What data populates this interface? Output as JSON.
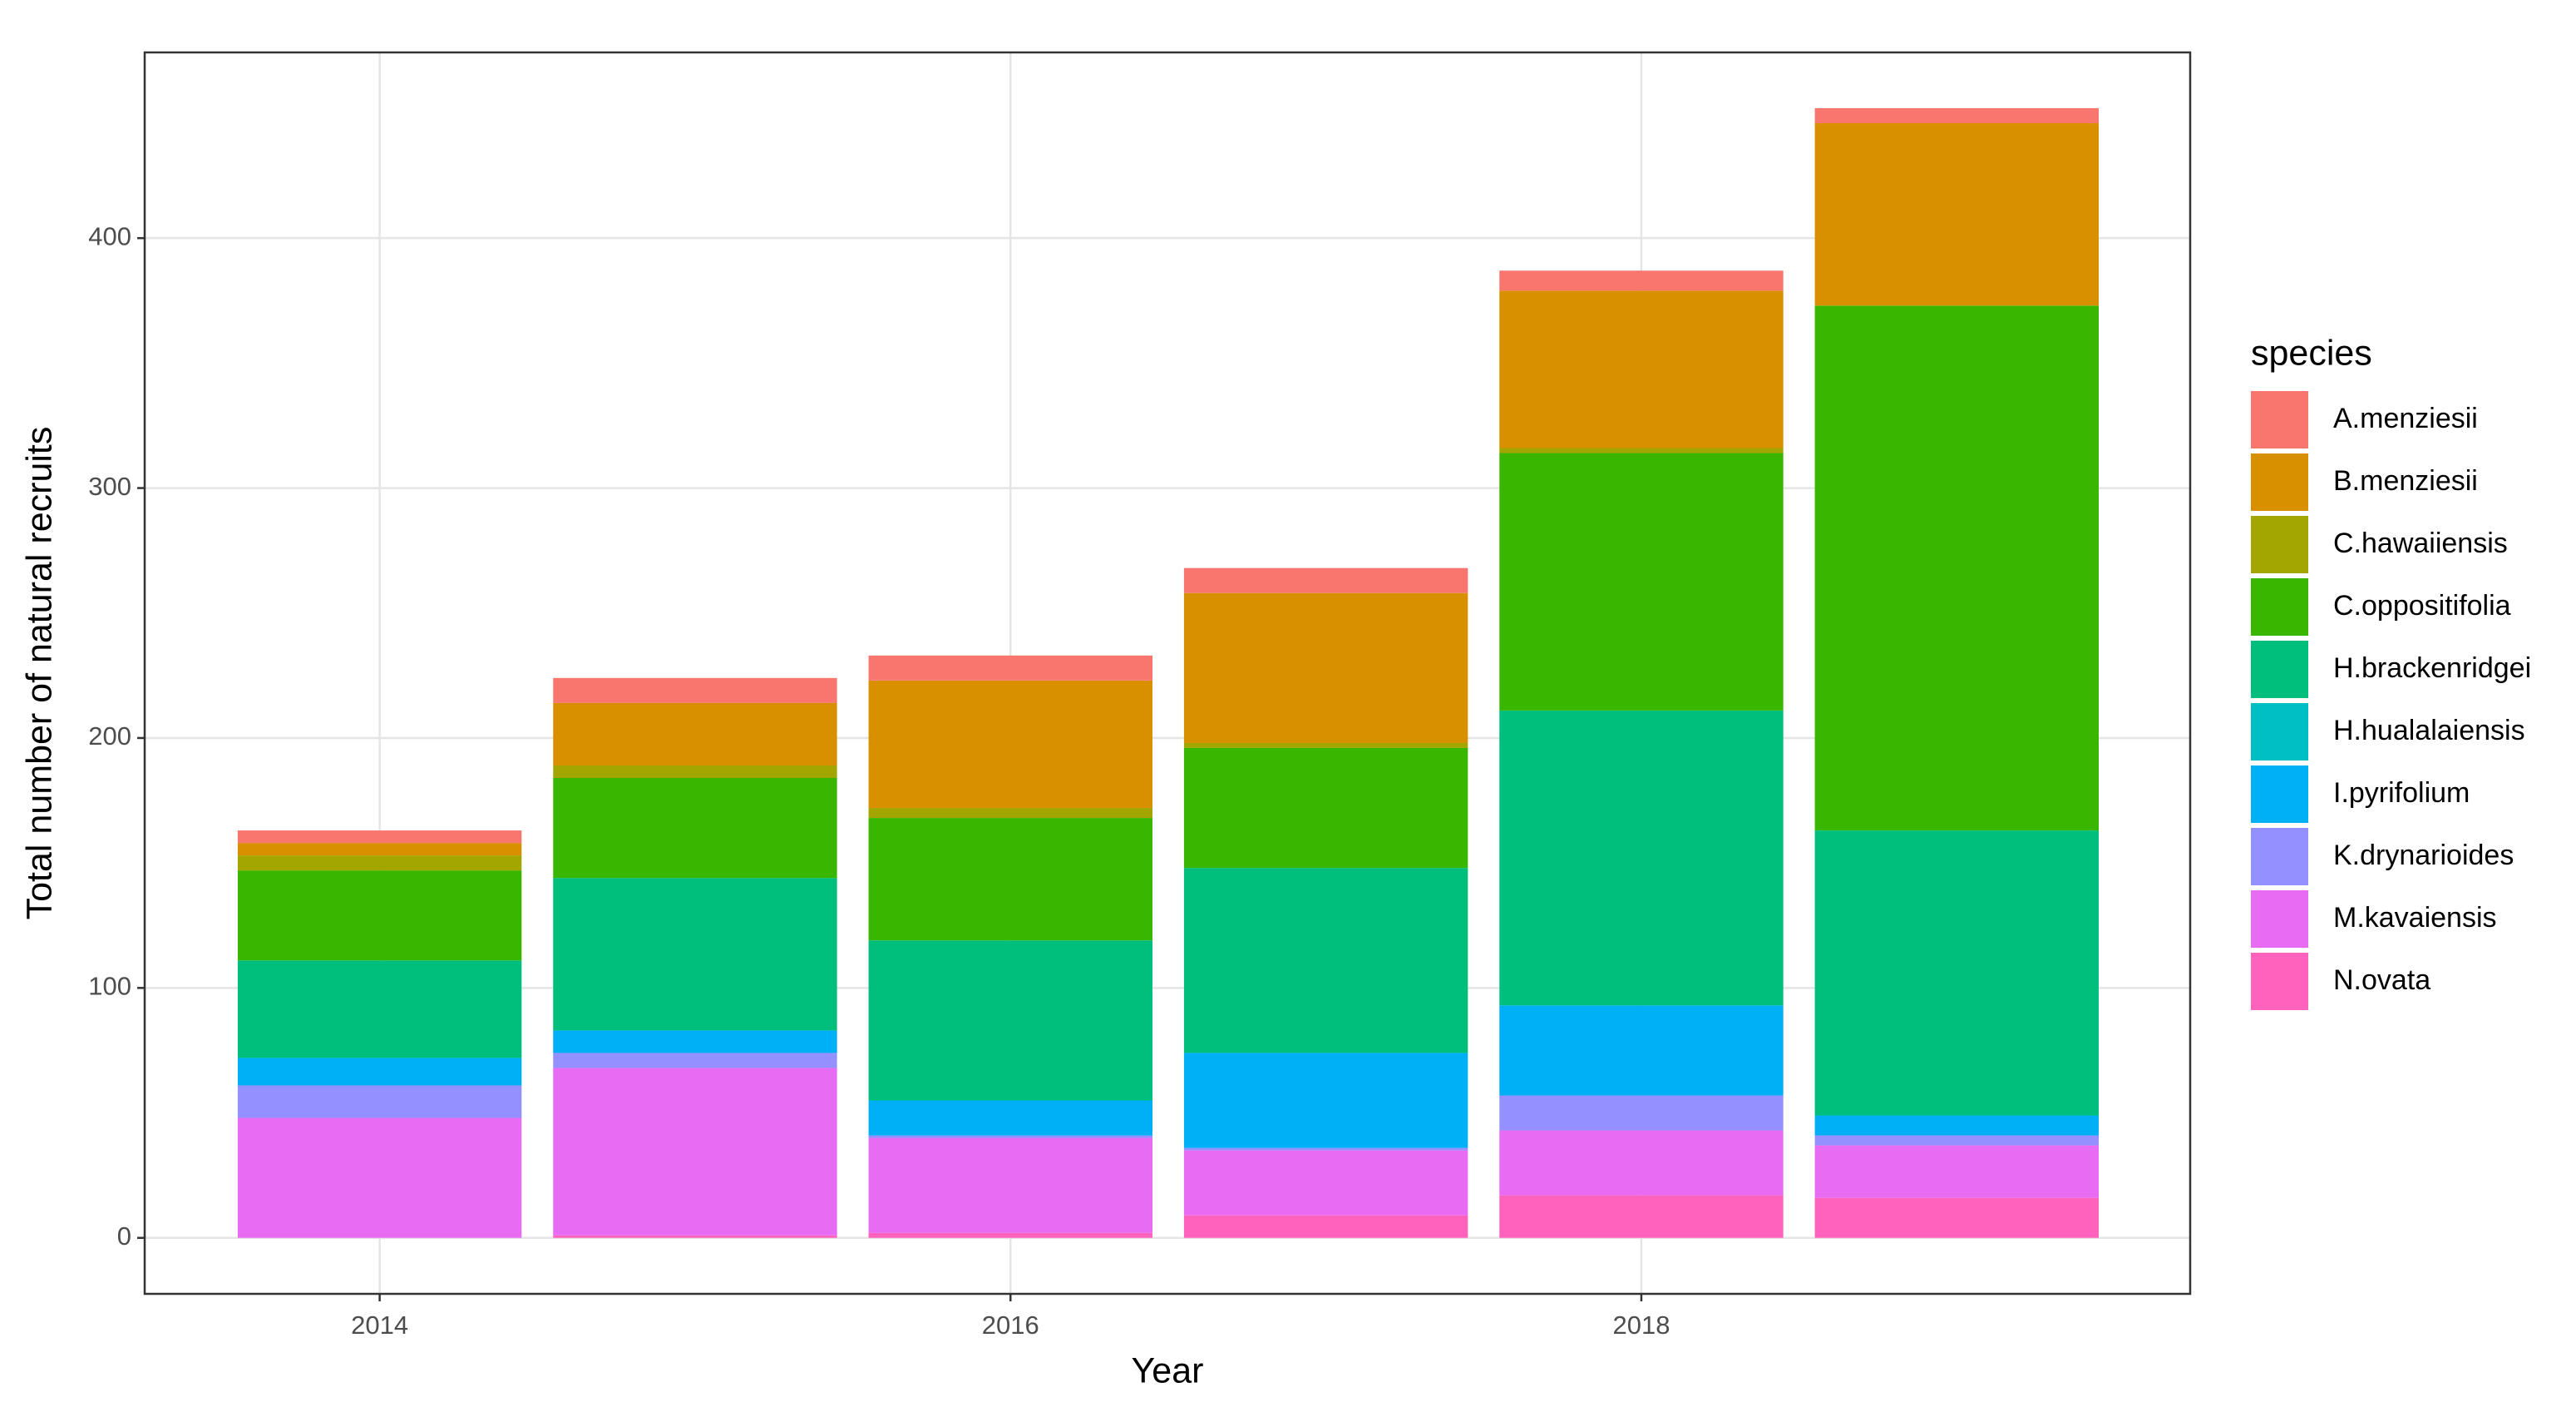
{
  "chart_data": {
    "type": "bar",
    "stacked": true,
    "x_label": "Year",
    "y_label": "Total number of natural recruits",
    "legend_title": "species",
    "x": [
      2014,
      2015,
      2016,
      2017,
      2018,
      2019
    ],
    "xlim": [
      2013.255,
      2019.74
    ],
    "xticks": [
      2014,
      2016,
      2018
    ],
    "ylim": [
      -22.4,
      474.3
    ],
    "yticks": [
      0,
      100,
      200,
      300,
      400
    ],
    "grid": true,
    "legend_position": "right",
    "series": [
      {
        "name": "A.menziesii",
        "color": "#F8766D",
        "values": [
          5,
          10,
          10,
          10,
          8,
          6
        ]
      },
      {
        "name": "B.menziesii",
        "color": "#D89000",
        "values": [
          5,
          25,
          51,
          60,
          63,
          73
        ]
      },
      {
        "name": "C.hawaiiensis",
        "color": "#A3A500",
        "values": [
          6,
          5,
          4,
          2,
          2,
          0
        ]
      },
      {
        "name": "C.oppositifolia",
        "color": "#39B600",
        "values": [
          36,
          40,
          49,
          48,
          103,
          210
        ]
      },
      {
        "name": "H.brackenridgei",
        "color": "#00BF7D",
        "values": [
          39,
          61,
          64,
          74,
          118,
          114
        ]
      },
      {
        "name": "H.hualalaiensis",
        "color": "#00BFC4",
        "values": [
          0,
          0,
          0,
          0,
          0,
          0
        ]
      },
      {
        "name": "I.pyrifolium",
        "color": "#00B0F6",
        "values": [
          11,
          9,
          14,
          38,
          36,
          8
        ]
      },
      {
        "name": "K.drynarioides",
        "color": "#9590FF",
        "values": [
          13,
          6,
          1,
          1,
          14,
          4
        ]
      },
      {
        "name": "M.kavaiensis",
        "color": "#E76BF3",
        "values": [
          48,
          67,
          38,
          26,
          26,
          21
        ]
      },
      {
        "name": "N.ovata",
        "color": "#FF62BC",
        "values": [
          0,
          1,
          2,
          9,
          17,
          16
        ]
      }
    ]
  }
}
